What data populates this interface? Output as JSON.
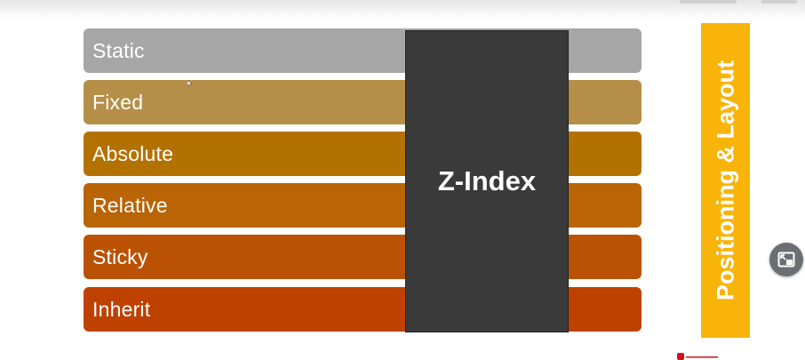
{
  "rows": [
    {
      "label": "Static",
      "color": "#a6a6a6"
    },
    {
      "label": "Fixed",
      "color": "#b58f47"
    },
    {
      "label": "Absolute",
      "color": "#b37200"
    },
    {
      "label": "Relative",
      "color": "#b96405"
    },
    {
      "label": "Sticky",
      "color": "#bb5203"
    },
    {
      "label": "Inherit",
      "color": "#bf4100"
    }
  ],
  "zindex": {
    "label": "Z-Index",
    "color": "#3b3a3a"
  },
  "side": {
    "label": "Positioning & Layout",
    "color": "#f9b409"
  },
  "icons": {
    "pip": "picture-in-picture-exit-icon",
    "logo": "brand-logo-icon",
    "cursor": "mouse-cursor-icon"
  }
}
